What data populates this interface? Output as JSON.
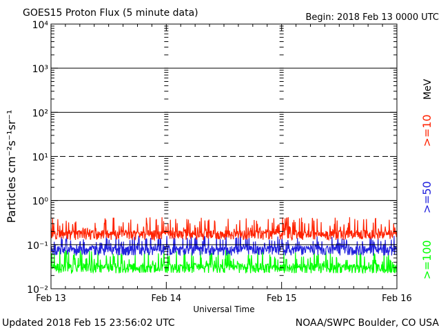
{
  "chart_data": {
    "type": "line",
    "title": "GOES15 Proton Flux (5 minute data)",
    "begin_label": "Begin: 2018 Feb 13 0000 UTC",
    "xlabel": "Universal Time",
    "ylabel": "Particles cm⁻²s⁻¹sr⁻¹",
    "yscale": "log",
    "ylim": [
      0.01,
      10000
    ],
    "xlim": [
      "2018-02-13",
      "2018-02-16"
    ],
    "y_ticks": [
      "10⁴",
      "10³",
      "10²",
      "10¹",
      "10⁰",
      "10⁻¹",
      "10⁻²"
    ],
    "x_ticks": [
      "Feb 13",
      "Feb 14",
      "Feb 15",
      "Feb 16"
    ],
    "reference_lines": [
      1000,
      100,
      10,
      1,
      0.1
    ],
    "dashed_reference_line": 10,
    "units_label": "MeV",
    "series": [
      {
        "name": ">=10",
        "color": "#ff2200",
        "baseline": 0.17,
        "spike_max": 0.42
      },
      {
        "name": ">=50",
        "color": "#2222dd",
        "baseline": 0.075,
        "spike_max": 0.16
      },
      {
        "name": ">=100",
        "color": "#00ff00",
        "baseline": 0.03,
        "spike_max": 0.075
      }
    ],
    "footer_left": "Updated 2018 Feb 15 23:56:02 UTC",
    "footer_right": "NOAA/SWPC Boulder, CO USA"
  }
}
